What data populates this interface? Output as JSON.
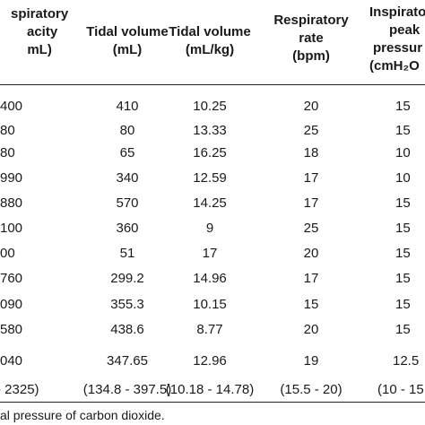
{
  "headers": {
    "col0": [
      "spiratory",
      "acity",
      "mL)"
    ],
    "col1": [
      "Tidal volume",
      "(mL)"
    ],
    "col2": [
      "Tidal volume",
      "(mL/kg)"
    ],
    "col3": [
      "Respiratory",
      "rate",
      "(bpm)"
    ],
    "col4": [
      "Inspirato",
      "peak",
      "pressur",
      "(cmH₂O"
    ]
  },
  "rows": [
    [
      "400",
      "410",
      "10.25",
      "20",
      "15"
    ],
    [
      "80",
      "80",
      "13.33",
      "25",
      "15"
    ],
    [
      "80",
      "65",
      "16.25",
      "18",
      "10"
    ],
    [
      "990",
      "340",
      "12.59",
      "17",
      "10"
    ],
    [
      "880",
      "570",
      "14.25",
      "17",
      "15"
    ],
    [
      "100",
      "360",
      "9",
      "25",
      "15"
    ],
    [
      "00",
      "51",
      "17",
      "20",
      "15"
    ],
    [
      "760",
      "299.2",
      "14.96",
      "17",
      "15"
    ],
    [
      "090",
      "355.3",
      "10.15",
      "15",
      "15"
    ],
    [
      "580",
      "438.6",
      "8.77",
      "20",
      "15"
    ],
    [
      "040",
      "347.65",
      "12.96",
      "19",
      "12.5"
    ]
  ],
  "summary_ranges": [
    "- 2325)",
    "(134.8 - 397.5)",
    "(10.18 - 14.78)",
    "(15.5 - 20)",
    "(10 - 15"
  ],
  "footnote": "al pressure of carbon dioxide."
}
